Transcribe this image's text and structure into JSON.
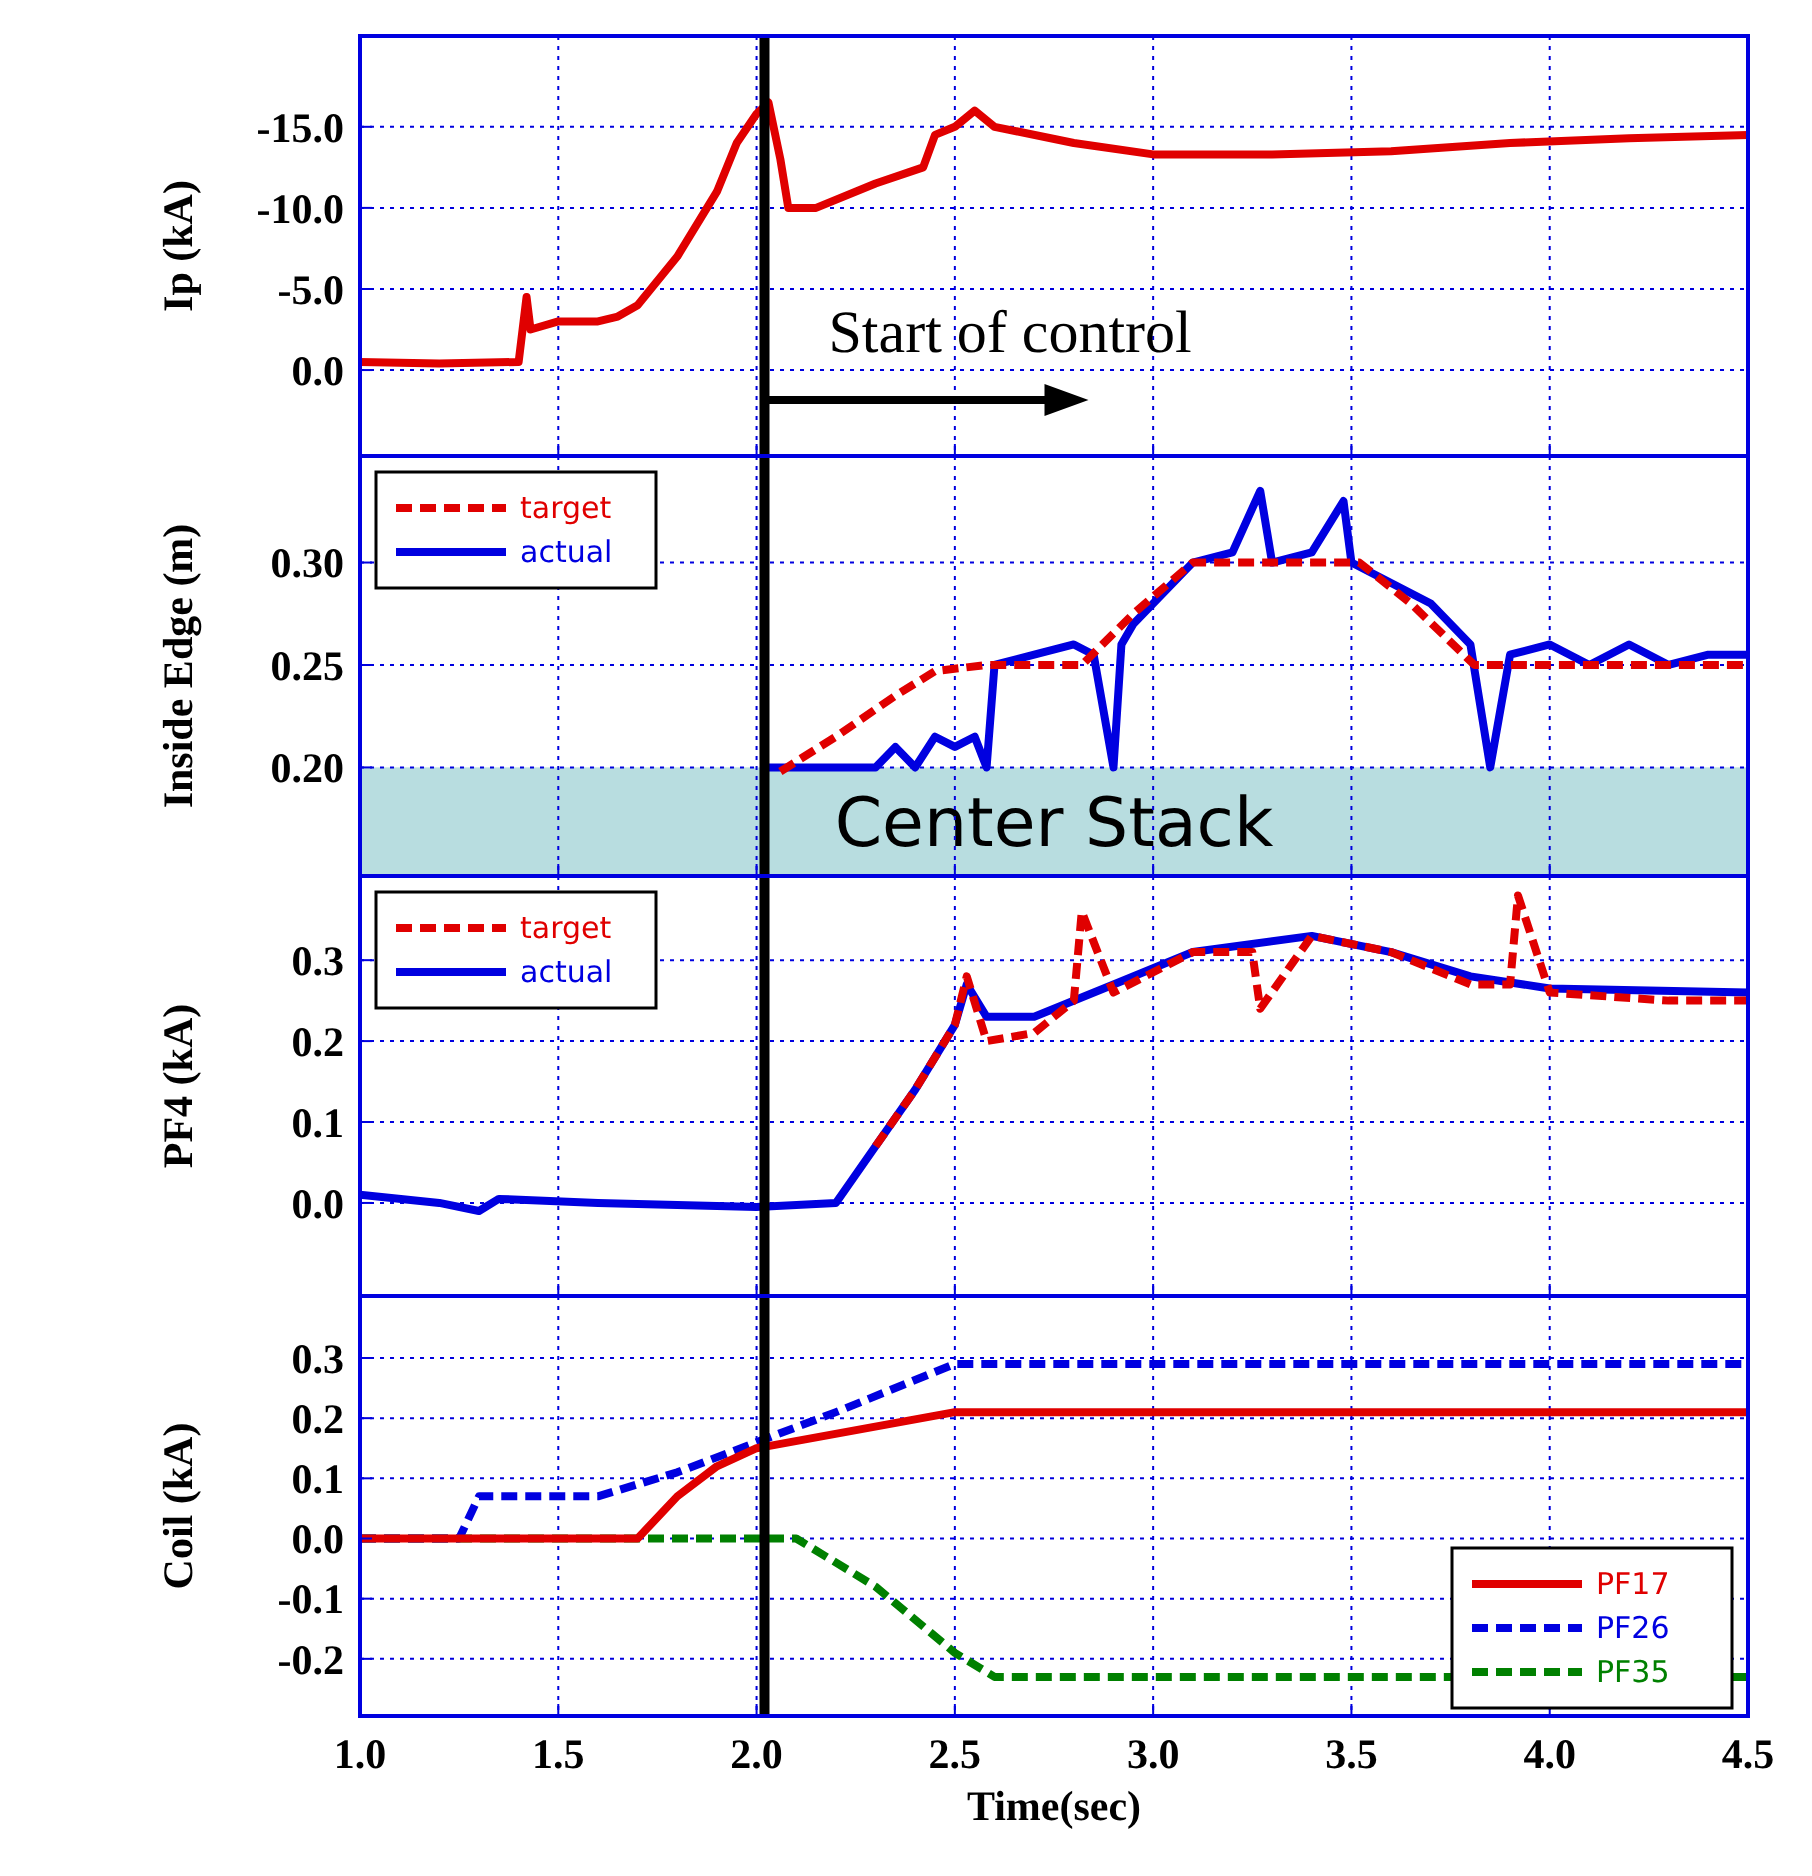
{
  "chart_data": [
    {
      "type": "line",
      "ylabel": "Ip (kA)",
      "xlim": [
        1,
        4.5
      ],
      "xticks": [
        1,
        1.5,
        2,
        2.5,
        3,
        3.5,
        4,
        4.5
      ],
      "ylim": [
        5.3,
        -20.6
      ],
      "yticks": [
        {
          "value": -15,
          "label": "-15.0"
        },
        {
          "value": -10,
          "label": "-10.0"
        },
        {
          "value": -5,
          "label": "-5.0"
        },
        {
          "value": 0,
          "label": "0.0"
        }
      ],
      "grid": true,
      "tick_labels": "y",
      "marker": "none",
      "legend": false,
      "series": [
        {
          "color": "#e00000",
          "line_style": "solid",
          "x": [
            1.0,
            1.2,
            1.4,
            1.41,
            1.42,
            1.43,
            1.5,
            1.6,
            1.65,
            1.7,
            1.8,
            1.9,
            1.95,
            2.0,
            2.03,
            2.06,
            2.08,
            2.15,
            2.3,
            2.42,
            2.45,
            2.5,
            2.55,
            2.6,
            2.8,
            3.0,
            3.3,
            3.6,
            3.9,
            4.2,
            4.5
          ],
          "values": [
            -0.5,
            -0.4,
            -0.5,
            -2.5,
            -4.5,
            -2.5,
            -3,
            -3,
            -3.3,
            -4,
            -7,
            -11,
            -14,
            -15.8,
            -16.5,
            -13,
            -10,
            -10,
            -11.5,
            -12.5,
            -14.5,
            -15,
            -16,
            -15,
            -14,
            -13.3,
            -13.3,
            -13.5,
            -14,
            -14.3,
            -14.5
          ]
        }
      ],
      "ref_lines": [
        {
          "axis": "x",
          "value": 2.02,
          "color": "#000000"
        }
      ],
      "annotations": [
        "Start of control"
      ]
    },
    {
      "type": "line",
      "ylabel": "Inside Edge (m)",
      "xlim": [
        1,
        4.5
      ],
      "xticks": [
        1,
        1.5,
        2,
        2.5,
        3,
        3.5,
        4,
        4.5
      ],
      "ylim": [
        0.147,
        0.352
      ],
      "yticks": [
        {
          "value": 0.2,
          "label": "0.20"
        },
        {
          "value": 0.25,
          "label": "0.25"
        },
        {
          "value": 0.3,
          "label": "0.30"
        }
      ],
      "grid": true,
      "tick_labels": "y",
      "marker": "none",
      "legend": "top left",
      "series": [
        {
          "name": "target",
          "color": "#e00000",
          "line_style": "dashed",
          "x": [
            2.06,
            2.2,
            2.35,
            2.45,
            2.58,
            2.82,
            2.95,
            3.1,
            3.52,
            3.65,
            3.81,
            4.5
          ],
          "values": [
            0.198,
            0.215,
            0.235,
            0.247,
            0.25,
            0.25,
            0.275,
            0.3,
            0.3,
            0.28,
            0.25,
            0.25
          ]
        },
        {
          "name": "actual",
          "color": "#0000e0",
          "line_style": "solid",
          "x": [
            2.02,
            2.3,
            2.35,
            2.4,
            2.45,
            2.5,
            2.55,
            2.58,
            2.6,
            2.7,
            2.8,
            2.85,
            2.9,
            2.92,
            2.95,
            3.0,
            3.1,
            3.2,
            3.27,
            3.3,
            3.4,
            3.48,
            3.5,
            3.6,
            3.7,
            3.8,
            3.85,
            3.9,
            4.0,
            4.1,
            4.2,
            4.3,
            4.4,
            4.5
          ],
          "values": [
            0.2,
            0.2,
            0.21,
            0.2,
            0.215,
            0.21,
            0.215,
            0.2,
            0.25,
            0.255,
            0.26,
            0.255,
            0.2,
            0.26,
            0.27,
            0.28,
            0.3,
            0.305,
            0.335,
            0.3,
            0.305,
            0.33,
            0.3,
            0.29,
            0.28,
            0.26,
            0.2,
            0.255,
            0.26,
            0.25,
            0.26,
            0.25,
            0.255,
            0.255
          ]
        }
      ],
      "ref_lines": [
        {
          "axis": "x",
          "value": 2.02,
          "color": "#000000"
        }
      ],
      "bands": [
        {
          "axis": "y",
          "from": 0.147,
          "to": 0.2,
          "label": "Center Stack",
          "color": "#b8dde0"
        }
      ]
    },
    {
      "type": "line",
      "ylabel": "PF4 (kA)",
      "xlim": [
        1,
        4.5
      ],
      "xticks": [
        1,
        1.5,
        2,
        2.5,
        3,
        3.5,
        4,
        4.5
      ],
      "ylim": [
        -0.115,
        0.404
      ],
      "yticks": [
        {
          "value": 0,
          "label": "0.0"
        },
        {
          "value": 0.1,
          "label": "0.1"
        },
        {
          "value": 0.2,
          "label": "0.2"
        },
        {
          "value": 0.3,
          "label": "0.3"
        }
      ],
      "grid": true,
      "tick_labels": "y",
      "marker": "none",
      "legend": "top left",
      "series": [
        {
          "name": "target",
          "color": "#e00000",
          "line_style": "dashed",
          "x": [
            2.3,
            2.4,
            2.5,
            2.53,
            2.58,
            2.7,
            2.8,
            2.82,
            2.9,
            3.1,
            3.25,
            3.27,
            3.4,
            3.6,
            3.8,
            3.9,
            3.92,
            4.0,
            4.3,
            4.5
          ],
          "values": [
            0.07,
            0.14,
            0.22,
            0.28,
            0.2,
            0.21,
            0.25,
            0.36,
            0.26,
            0.31,
            0.31,
            0.24,
            0.33,
            0.31,
            0.27,
            0.27,
            0.38,
            0.26,
            0.25,
            0.25
          ]
        },
        {
          "name": "actual",
          "color": "#0000e0",
          "line_style": "solid",
          "x": [
            1.0,
            1.2,
            1.3,
            1.35,
            1.6,
            2.0,
            2.2,
            2.3,
            2.4,
            2.5,
            2.53,
            2.58,
            2.7,
            2.9,
            3.1,
            3.4,
            3.6,
            3.8,
            4.0,
            4.5
          ],
          "values": [
            0.01,
            0.0,
            -0.01,
            0.005,
            0.0,
            -0.005,
            0.0,
            0.07,
            0.14,
            0.22,
            0.27,
            0.23,
            0.23,
            0.27,
            0.31,
            0.33,
            0.31,
            0.28,
            0.265,
            0.26
          ]
        }
      ],
      "ref_lines": [
        {
          "axis": "x",
          "value": 2.02,
          "color": "#000000"
        }
      ]
    },
    {
      "type": "line",
      "ylabel": "Coil (kA)",
      "xlabel": "Time(sec)",
      "xlim": [
        1,
        4.5
      ],
      "xticks": [
        {
          "value": 1,
          "label": "1.0"
        },
        {
          "value": 1.5,
          "label": "1.5"
        },
        {
          "value": 2,
          "label": "2.0"
        },
        {
          "value": 2.5,
          "label": "2.5"
        },
        {
          "value": 3,
          "label": "3.0"
        },
        {
          "value": 3.5,
          "label": "3.5"
        },
        {
          "value": 4,
          "label": "4.0"
        },
        {
          "value": 4.5,
          "label": "4.5"
        }
      ],
      "ylim": [
        -0.295,
        0.403
      ],
      "yticks": [
        {
          "value": -0.2,
          "label": "-0.2"
        },
        {
          "value": -0.1,
          "label": "-0.1"
        },
        {
          "value": 0,
          "label": "0.0"
        },
        {
          "value": 0.1,
          "label": "0.1"
        },
        {
          "value": 0.2,
          "label": "0.2"
        },
        {
          "value": 0.3,
          "label": "0.3"
        }
      ],
      "grid": true,
      "marker": "none",
      "legend": "bottom right",
      "series": [
        {
          "name": "PF17",
          "color": "#e00000",
          "line_style": "solid",
          "x": [
            1.0,
            1.7,
            1.8,
            1.9,
            2.0,
            2.5,
            4.5
          ],
          "values": [
            0,
            0,
            0.07,
            0.12,
            0.15,
            0.21,
            0.21
          ]
        },
        {
          "name": "PF26",
          "color": "#0000e0",
          "line_style": "dashed",
          "x": [
            1.0,
            1.25,
            1.3,
            1.6,
            1.8,
            2.0,
            2.2,
            2.5,
            4.5
          ],
          "values": [
            0,
            0,
            0.07,
            0.07,
            0.11,
            0.16,
            0.21,
            0.29,
            0.29
          ]
        },
        {
          "name": "PF35",
          "color": "#008000",
          "line_style": "dashed",
          "x": [
            1.0,
            2.1,
            2.3,
            2.5,
            2.6,
            4.5
          ],
          "values": [
            0,
            0,
            -0.08,
            -0.19,
            -0.23,
            -0.23
          ]
        }
      ],
      "ref_lines": [
        {
          "axis": "x",
          "value": 2.02,
          "color": "#000000"
        }
      ]
    }
  ]
}
